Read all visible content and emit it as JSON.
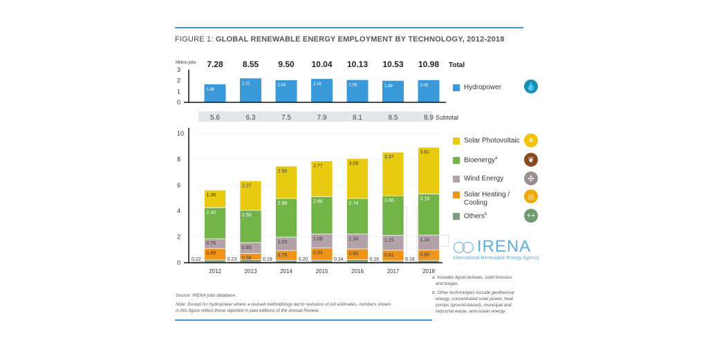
{
  "title_prefix": "FIGURE 1:",
  "title_main": "GLOBAL RENEWABLE ENERGY EMPLOYMENT BY TECHNOLOGY, 2012-2018",
  "chart_data": [
    {
      "type": "bar",
      "title": "Hydropower",
      "ylabel": "Million jobs",
      "ylim": [
        0,
        3
      ],
      "yticks": [
        "0",
        "1",
        "2",
        "3"
      ],
      "categories": [
        "2012",
        "2013",
        "2014",
        "2015",
        "2016",
        "2017",
        "2018"
      ],
      "series": [
        {
          "name": "Hydropower",
          "color": "#3a9ad9",
          "values": [
            1.66,
            2.21,
            2.04,
            2.16,
            2.06,
            1.99,
            2.05
          ],
          "labels": [
            "1.66",
            "2.21",
            "2.04",
            "2.16",
            "2.06",
            "1.99",
            "2.05"
          ]
        }
      ],
      "totals_label": "Total",
      "totals": [
        "7.28",
        "8.55",
        "9.50",
        "10.04",
        "10.13",
        "10.53",
        "10.98"
      ]
    },
    {
      "type": "bar",
      "stacked": true,
      "ylim": [
        0,
        10
      ],
      "yticks": [
        "0",
        "2",
        "4",
        "6",
        "8",
        "10"
      ],
      "categories": [
        "2012",
        "2013",
        "2014",
        "2015",
        "2016",
        "2017",
        "2018"
      ],
      "subtotal_label": "Subtotal",
      "subtotals": [
        "5.6",
        "6.3",
        "7.5",
        "7.9",
        "8.1",
        "8.5",
        "8.9"
      ],
      "series": [
        {
          "name": "Others",
          "sup": "b",
          "color": "#7f9c82",
          "values": [
            0.22,
            0.23,
            0.19,
            0.2,
            0.24,
            0.16,
            0.18
          ],
          "labels": [
            "0.22",
            "0.23",
            "0.19",
            "0.20",
            "0.24",
            "0.16",
            "0.18"
          ]
        },
        {
          "name": "Solar Heating / Cooling",
          "color": "#ef941b",
          "values": [
            0.89,
            0.5,
            0.76,
            0.94,
            0.83,
            0.81,
            0.8
          ],
          "labels": [
            "0.89",
            "0.50",
            "0.76",
            "0.94",
            "0.83",
            "0.81",
            "0.80"
          ]
        },
        {
          "name": "Wind Energy",
          "color": "#b3a3a8",
          "values": [
            0.75,
            0.83,
            1.03,
            1.08,
            1.16,
            1.15,
            1.16
          ],
          "labels": [
            "0.75",
            "0.83",
            "1.03",
            "1.08",
            "1.16",
            "1.15",
            "1.16"
          ]
        },
        {
          "name": "Bioenergy",
          "sup": "a",
          "color": "#72b447",
          "values": [
            2.4,
            2.5,
            2.99,
            2.88,
            2.74,
            3.06,
            3.18
          ],
          "labels": [
            "2.40",
            "2.50",
            "2.99",
            "2.88",
            "2.74",
            "3.06",
            "3.18"
          ]
        },
        {
          "name": "Solar Photovoltaic",
          "color": "#e8cb10",
          "values": [
            1.36,
            2.27,
            2.5,
            2.77,
            3.09,
            3.37,
            3.61
          ],
          "labels": [
            "1.36",
            "2.27",
            "2.50",
            "2.77",
            "3.09",
            "3.37",
            "3.61"
          ]
        }
      ],
      "legend_placement": "right"
    }
  ],
  "legend": {
    "hydro": "Hydropower",
    "pv": "Solar Photovoltaic",
    "bio": "Bioenergy",
    "bio_sup": "a",
    "wind": "Wind Energy",
    "heat1": "Solar Heating /",
    "heat2": "Cooling",
    "others": "Others",
    "others_sup": "b"
  },
  "logo": {
    "name": "IRENA",
    "tagline": "International Renewable Energy Agency"
  },
  "footnotes": {
    "a1": "a. Includes liquid biofuels, solid biomass",
    "a2": "and biogas.",
    "b1": "b. Other technologies include geothermal",
    "b2": "energy, concentrated solar power, heat",
    "b3": "pumps (ground-based), municipal and",
    "b4": "industrial waste, and ocean energy."
  },
  "source": "Source: IRENA jobs database.",
  "note1": "Note: Except for hydropower where a revised methodology led to revisions of job estimates, numbers shown",
  "note2": "in this figure reflect those reported in past editions of the Annual Review."
}
